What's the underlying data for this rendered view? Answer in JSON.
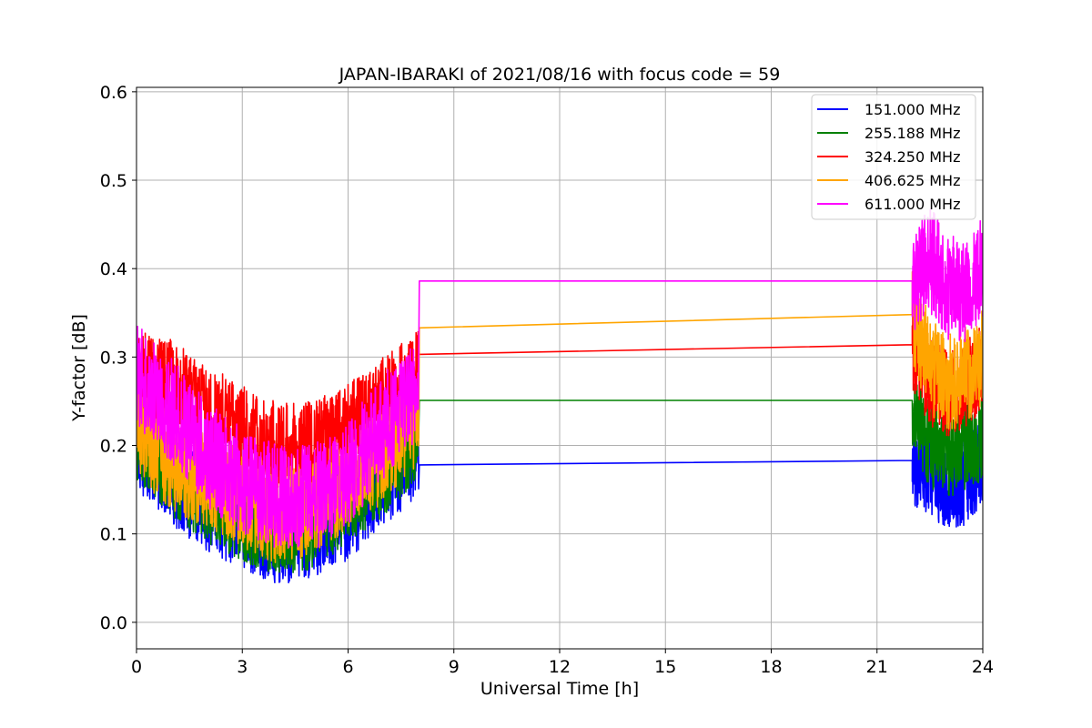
{
  "chart_data": {
    "type": "line",
    "title": "JAPAN-IBARAKI of 2021/08/16 with focus code = 59",
    "xlabel": "Universal Time [h]",
    "ylabel": "Y-factor [dB]",
    "xlim": [
      0,
      24
    ],
    "ylim": [
      -0.03,
      0.605
    ],
    "xticks": [
      0,
      3,
      6,
      9,
      12,
      15,
      18,
      21,
      24
    ],
    "xtick_labels": [
      "0",
      "3",
      "6",
      "9",
      "12",
      "15",
      "18",
      "21",
      "24"
    ],
    "yticks": [
      0.0,
      0.1,
      0.2,
      0.3,
      0.4,
      0.5,
      0.6
    ],
    "ytick_labels": [
      "0.0",
      "0.1",
      "0.2",
      "0.3",
      "0.4",
      "0.5",
      "0.6"
    ],
    "grid": true,
    "legend_position": "top-right",
    "series": [
      {
        "name": "151.000 MHz",
        "color": "#0000ff",
        "points": [
          [
            0,
            0.2
          ],
          [
            1,
            0.16
          ],
          [
            2,
            0.13
          ],
          [
            3,
            0.11
          ],
          [
            4,
            0.09
          ],
          [
            5,
            0.1
          ],
          [
            6,
            0.12
          ],
          [
            7,
            0.16
          ],
          [
            8,
            0.19
          ],
          [
            8.02,
            0.178
          ],
          [
            22,
            0.183
          ],
          [
            22.5,
            0.17
          ],
          [
            23,
            0.15
          ],
          [
            23.5,
            0.16
          ],
          [
            24,
            0.18
          ]
        ],
        "noise_amplitude": 0.05
      },
      {
        "name": "255.188 MHz",
        "color": "#008000",
        "points": [
          [
            0,
            0.21
          ],
          [
            1,
            0.17
          ],
          [
            2,
            0.14
          ],
          [
            3,
            0.12
          ],
          [
            4,
            0.1
          ],
          [
            5,
            0.11
          ],
          [
            6,
            0.14
          ],
          [
            7,
            0.17
          ],
          [
            8,
            0.21
          ],
          [
            8.02,
            0.251
          ],
          [
            22,
            0.251
          ],
          [
            22.5,
            0.2
          ],
          [
            23,
            0.19
          ],
          [
            23.5,
            0.2
          ],
          [
            24,
            0.21
          ]
        ],
        "noise_amplitude": 0.05
      },
      {
        "name": "324.250 MHz",
        "color": "#ff0000",
        "points": [
          [
            0,
            0.28
          ],
          [
            1,
            0.27
          ],
          [
            2,
            0.24
          ],
          [
            3,
            0.22
          ],
          [
            4,
            0.2
          ],
          [
            5,
            0.2
          ],
          [
            6,
            0.22
          ],
          [
            7,
            0.25
          ],
          [
            8,
            0.28
          ],
          [
            8.02,
            0.303
          ],
          [
            22,
            0.314
          ],
          [
            22.5,
            0.27
          ],
          [
            23,
            0.26
          ],
          [
            23.5,
            0.27
          ],
          [
            24,
            0.29
          ]
        ],
        "noise_amplitude": 0.05
      },
      {
        "name": "406.625 MHz",
        "color": "#ffa500",
        "points": [
          [
            0,
            0.22
          ],
          [
            1,
            0.18
          ],
          [
            2,
            0.16
          ],
          [
            3,
            0.14
          ],
          [
            4,
            0.12
          ],
          [
            5,
            0.13
          ],
          [
            6,
            0.16
          ],
          [
            7,
            0.19
          ],
          [
            8,
            0.23
          ],
          [
            8.02,
            0.333
          ],
          [
            22,
            0.348
          ],
          [
            22.5,
            0.29
          ],
          [
            23,
            0.27
          ],
          [
            23.5,
            0.28
          ],
          [
            24,
            0.3
          ]
        ],
        "noise_amplitude": 0.055
      },
      {
        "name": "611.000 MHz",
        "color": "#ff00ff",
        "points": [
          [
            0,
            0.28
          ],
          [
            1,
            0.24
          ],
          [
            2,
            0.19
          ],
          [
            3,
            0.16
          ],
          [
            4,
            0.14
          ],
          [
            5,
            0.14
          ],
          [
            6,
            0.17
          ],
          [
            7,
            0.22
          ],
          [
            8,
            0.27
          ],
          [
            8.02,
            0.386
          ],
          [
            22,
            0.386
          ],
          [
            22.5,
            0.41
          ],
          [
            23,
            0.38
          ],
          [
            23.5,
            0.37
          ],
          [
            24,
            0.4
          ]
        ],
        "noise_amplitude": 0.06
      }
    ]
  }
}
